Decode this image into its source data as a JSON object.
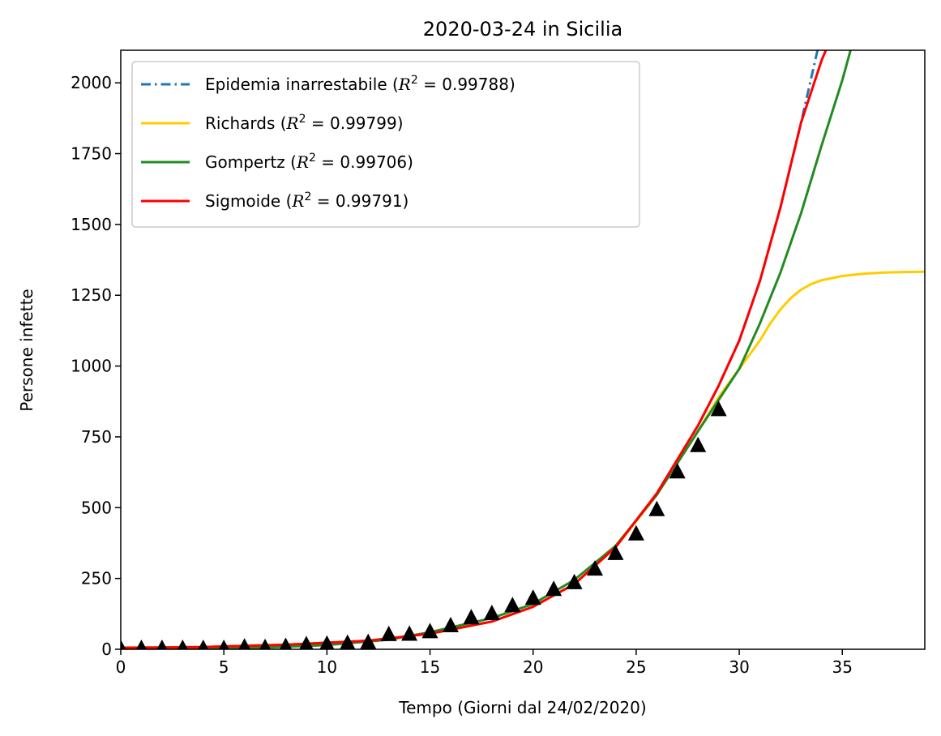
{
  "chart_data": {
    "type": "line",
    "title": "2020-03-24 in Sicilia",
    "xlabel": "Tempo (Giorni dal 24/02/2020)",
    "ylabel": "Persone infette",
    "xlim": [
      0,
      39
    ],
    "ylim": [
      0,
      2115
    ],
    "xticks": [
      0,
      5,
      10,
      15,
      20,
      25,
      30,
      35
    ],
    "yticks": [
      0,
      250,
      500,
      750,
      1000,
      1250,
      1500,
      1750,
      2000
    ],
    "grid": false,
    "legend_position": "top-left",
    "legend": [
      {
        "name": "Epidemia inarrestabile",
        "r2": "0.99788",
        "color": "#1f77b4",
        "dash": "dashdot"
      },
      {
        "name": "Richards",
        "r2": "0.99799",
        "color": "#ffcc00",
        "dash": "solid"
      },
      {
        "name": "Gompertz",
        "r2": "0.99706",
        "color": "#228b22",
        "dash": "solid"
      },
      {
        "name": "Sigmoide",
        "r2": "0.99791",
        "color": "#ff0000",
        "dash": "solid"
      }
    ],
    "observed": {
      "marker": "triangle",
      "color": "#000000",
      "x": [
        0,
        1,
        2,
        3,
        4,
        5,
        6,
        7,
        8,
        9,
        10,
        11,
        12,
        13,
        14,
        15,
        16,
        17,
        18,
        19,
        20,
        21,
        22,
        23,
        24,
        25,
        26,
        27,
        28,
        29
      ],
      "y": [
        3,
        3,
        3,
        3,
        3,
        3,
        8,
        6,
        10,
        16,
        18,
        21,
        24,
        52,
        53,
        62,
        83,
        111,
        126,
        154,
        180,
        211,
        235,
        283,
        338,
        407,
        493,
        626,
        719,
        846
      ]
    },
    "series": [
      {
        "name": "Epidemia inarrestabile",
        "color": "#1f77b4",
        "dash": "dashdot",
        "x": [
          0,
          4,
          8,
          12,
          15,
          18,
          20,
          22,
          24,
          26,
          28,
          29,
          30,
          31,
          32,
          33,
          34
        ],
        "y": [
          6,
          8,
          16,
          30,
          55,
          98,
          150,
          230,
          360,
          550,
          790,
          930,
          1090,
          1300,
          1560,
          1860,
          2180
        ]
      },
      {
        "name": "Richards",
        "color": "#ffcc00",
        "dash": "solid",
        "x": [
          0,
          4,
          8,
          12,
          15,
          18,
          20,
          22,
          24,
          26,
          28,
          29,
          30,
          30.5,
          31,
          31.5,
          32,
          32.5,
          33,
          33.5,
          34,
          35,
          36,
          37,
          38,
          39
        ],
        "y": [
          6,
          8,
          16,
          30,
          55,
          98,
          150,
          230,
          360,
          545,
          770,
          890,
          990,
          1040,
          1090,
          1150,
          1200,
          1240,
          1270,
          1290,
          1303,
          1318,
          1326,
          1330,
          1332,
          1333
        ]
      },
      {
        "name": "Gompertz",
        "color": "#228b22",
        "dash": "solid",
        "x": [
          0,
          4,
          7,
          10,
          13,
          15,
          18,
          20,
          22,
          24,
          26,
          28,
          29,
          30,
          31,
          32,
          33,
          34,
          35,
          35.4
        ],
        "y": [
          0,
          2,
          6,
          15,
          34,
          60,
          110,
          160,
          245,
          365,
          545,
          770,
          880,
          990,
          1150,
          1330,
          1540,
          1780,
          2010,
          2115
        ]
      },
      {
        "name": "Sigmoide",
        "color": "#ff0000",
        "dash": "solid",
        "x": [
          0,
          4,
          8,
          12,
          15,
          18,
          20,
          22,
          24,
          26,
          28,
          29,
          30,
          31,
          32,
          33,
          34,
          34.2
        ],
        "y": [
          5,
          8,
          16,
          30,
          55,
          98,
          150,
          230,
          360,
          550,
          790,
          930,
          1090,
          1300,
          1560,
          1860,
          2080,
          2115
        ]
      }
    ]
  }
}
